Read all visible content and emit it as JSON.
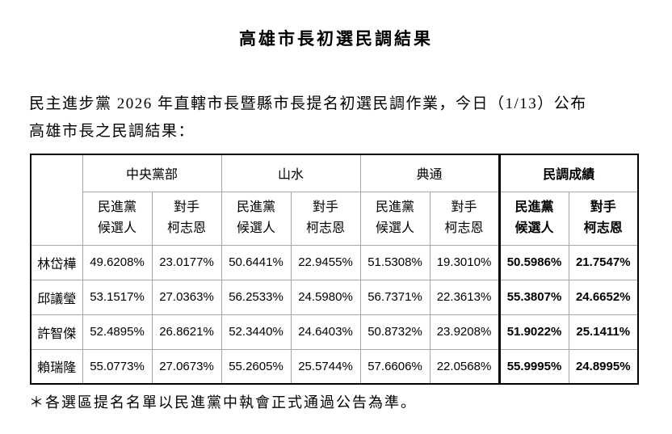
{
  "page": {
    "title": "高雄市長初選民調結果",
    "intro_line1": "民主進步黨 2026 年直轄市長暨縣市長提名初選民調作業，今日（1/13）公布",
    "intro_line2": "高雄市長之民調結果：",
    "footnote": "＊各選區提名名單以民進黨中執會正式通過公告為準。"
  },
  "table": {
    "groups": [
      "中央黨部",
      "山水",
      "典通",
      "民調成績"
    ],
    "sub_dpp": "民進黨\n候選人",
    "sub_opp": "對手\n柯志恩",
    "rows": [
      {
        "name": "林岱樺",
        "values": [
          "49.6208%",
          "23.0177%",
          "50.6441%",
          "22.9455%",
          "51.5308%",
          "19.3010%",
          "50.5986%",
          "21.7547%"
        ]
      },
      {
        "name": "邱議瑩",
        "values": [
          "53.1517%",
          "27.0363%",
          "56.2533%",
          "24.5980%",
          "56.7371%",
          "22.3613%",
          "55.3807%",
          "24.6652%"
        ]
      },
      {
        "name": "許智傑",
        "values": [
          "52.4895%",
          "26.8621%",
          "52.3440%",
          "24.6403%",
          "50.8732%",
          "23.9208%",
          "51.9022%",
          "25.1411%"
        ]
      },
      {
        "name": "賴瑞隆",
        "values": [
          "55.0773%",
          "27.0673%",
          "55.2605%",
          "25.5744%",
          "57.6606%",
          "22.0568%",
          "55.9995%",
          "24.8995%"
        ]
      }
    ]
  }
}
